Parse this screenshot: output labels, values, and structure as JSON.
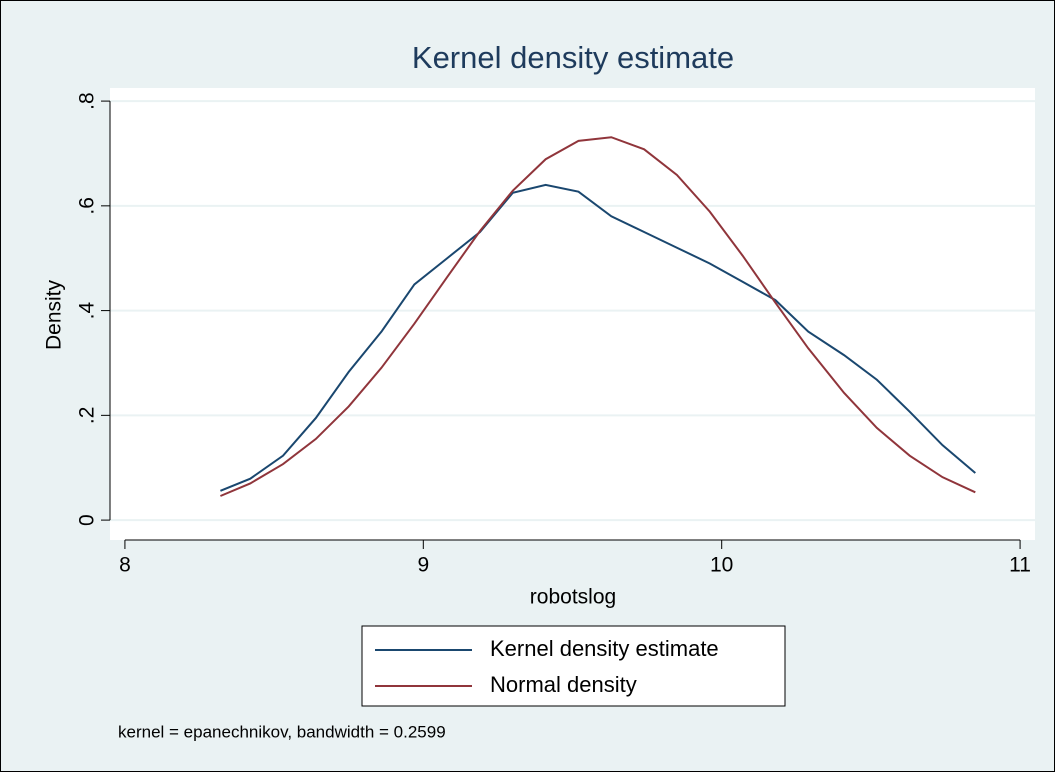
{
  "chart_data": {
    "type": "line",
    "title": "Kernel density estimate",
    "x_label": "robotslog",
    "y_label": "Density",
    "note": "kernel = epanechnikov, bandwidth = 0.2599",
    "x": [
      8.32,
      8.42,
      8.53,
      8.64,
      8.75,
      8.86,
      8.97,
      9.08,
      9.19,
      9.3,
      9.41,
      9.52,
      9.63,
      9.74,
      9.85,
      9.96,
      10.07,
      10.18,
      10.29,
      10.41,
      10.52,
      10.63,
      10.74,
      10.85
    ],
    "series": [
      {
        "name": "Kernel density estimate",
        "color": "#1a476f",
        "values": [
          0.056,
          0.079,
          0.123,
          0.195,
          0.283,
          0.36,
          0.45,
          0.5,
          0.55,
          0.625,
          0.64,
          0.627,
          0.58,
          0.55,
          0.52,
          0.49,
          0.455,
          0.42,
          0.36,
          0.315,
          0.268,
          0.207,
          0.143,
          0.09
        ]
      },
      {
        "name": "Normal density",
        "color": "#90353b",
        "values": [
          0.046,
          0.07,
          0.107,
          0.155,
          0.217,
          0.291,
          0.375,
          0.464,
          0.552,
          0.629,
          0.689,
          0.724,
          0.731,
          0.708,
          0.659,
          0.589,
          0.505,
          0.415,
          0.328,
          0.243,
          0.176,
          0.123,
          0.082,
          0.053
        ]
      }
    ],
    "xlim": [
      7.95,
      11.05
    ],
    "xticks": [
      8,
      9,
      10,
      11
    ],
    "ylim": [
      -0.038,
      0.825
    ],
    "yticks": [
      0,
      {
        "value": 0.2,
        "label": ".2"
      },
      {
        "value": 0.4,
        "label": ".4"
      },
      {
        "value": 0.6,
        "label": ".6"
      },
      {
        "value": 0.8,
        "label": ".8"
      }
    ],
    "grid": true
  }
}
